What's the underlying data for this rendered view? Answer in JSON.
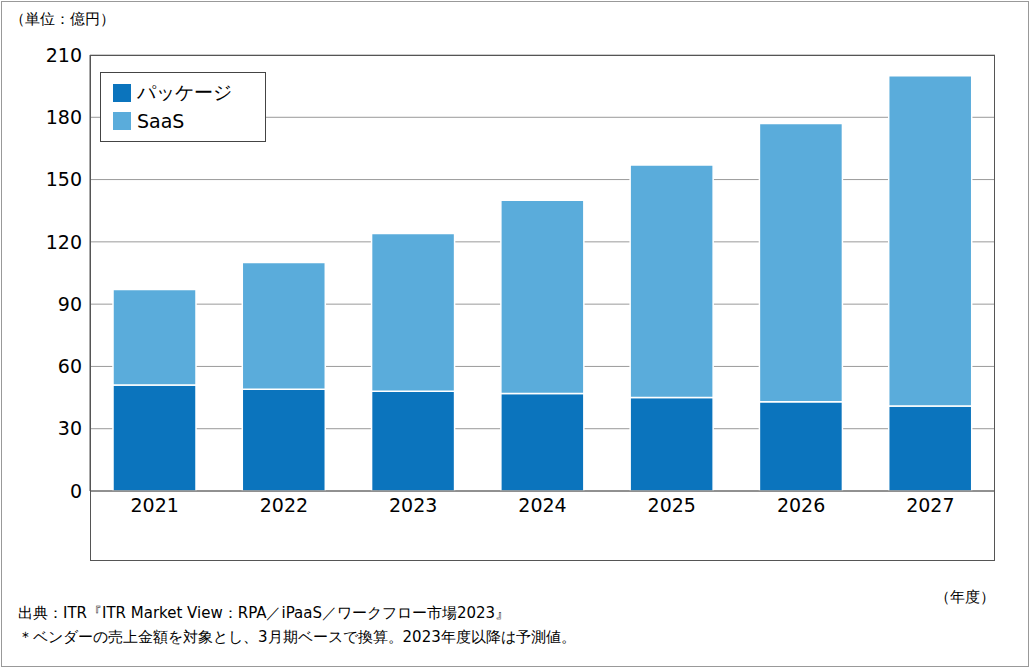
{
  "chart_data": {
    "type": "bar",
    "stacked": true,
    "y_label": "（単位：億円）",
    "x_label": "（年度）",
    "annotations": [
      "出典：ITR『ITR Market View：RPA／iPaaS／ワークフロー市場2023』",
      "＊ベンダーの売上金額を対象とし、3月期ベースで換算。2023年度以降は予測値。"
    ],
    "categories": [
      "2021",
      "2022",
      "2023",
      "2024",
      "2025",
      "2026",
      "2027"
    ],
    "series": [
      {
        "name": "パッケージ",
        "color": "#0b74bd",
        "values": [
          51,
          49,
          48,
          47,
          45,
          43,
          41
        ]
      },
      {
        "name": "SaaS",
        "color": "#5aacdb",
        "values": [
          46,
          61,
          76,
          93,
          112,
          134,
          159
        ]
      }
    ],
    "ylim": [
      0,
      210
    ],
    "yticks": [
      0,
      30,
      60,
      90,
      120,
      150,
      180,
      210
    ],
    "grid": true,
    "legend": "upper left"
  }
}
